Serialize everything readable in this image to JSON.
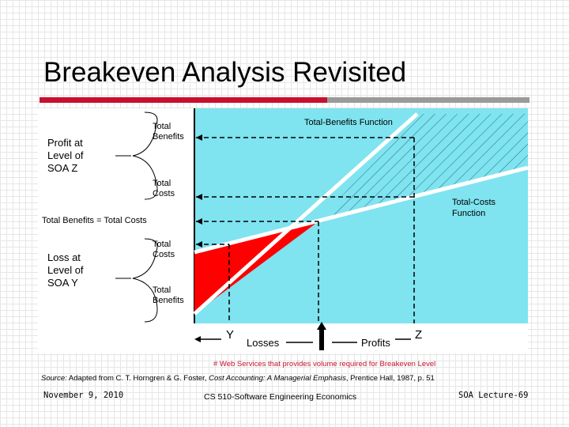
{
  "slide": {
    "title": "Breakeven Analysis Revisited",
    "footnote": "# Web Services that provides volume required for Breakeven Level",
    "source_label": "Source:",
    "source_text": " Adapted from C. T. Horngren & G. Foster, ",
    "source_book": "Cost Accounting: A Managerial Emphasis",
    "source_tail": ", Prentice Hall, 1987, p. 51",
    "date": "November 9, 2010",
    "course": "CS 510-Software Engineering Economics",
    "lecture": "SOA Lecture-69"
  },
  "diagram": {
    "profit_label_1": "Profit at",
    "profit_label_2": "Level of",
    "profit_label_3": "SOA Z",
    "loss_label_1": "Loss at",
    "loss_label_2": "Level of",
    "loss_label_3": "SOA Y",
    "total_benefits": "Total",
    "total_benefits_2": "Benefits",
    "total_costs": "Total",
    "total_costs_2": "Costs",
    "breakeven": "Total Benefits = Total Costs",
    "benefits_function": "Total-Benefits Function",
    "costs_function_1": "Total-Costs",
    "costs_function_2": "Function",
    "y_marker": "Y",
    "z_marker": "Z",
    "losses": "Losses",
    "profits": "Profits"
  },
  "colors": {
    "plot_bg": "#7fe3f0",
    "loss_fill": "#ff0000",
    "accent_red": "#c8102e"
  }
}
